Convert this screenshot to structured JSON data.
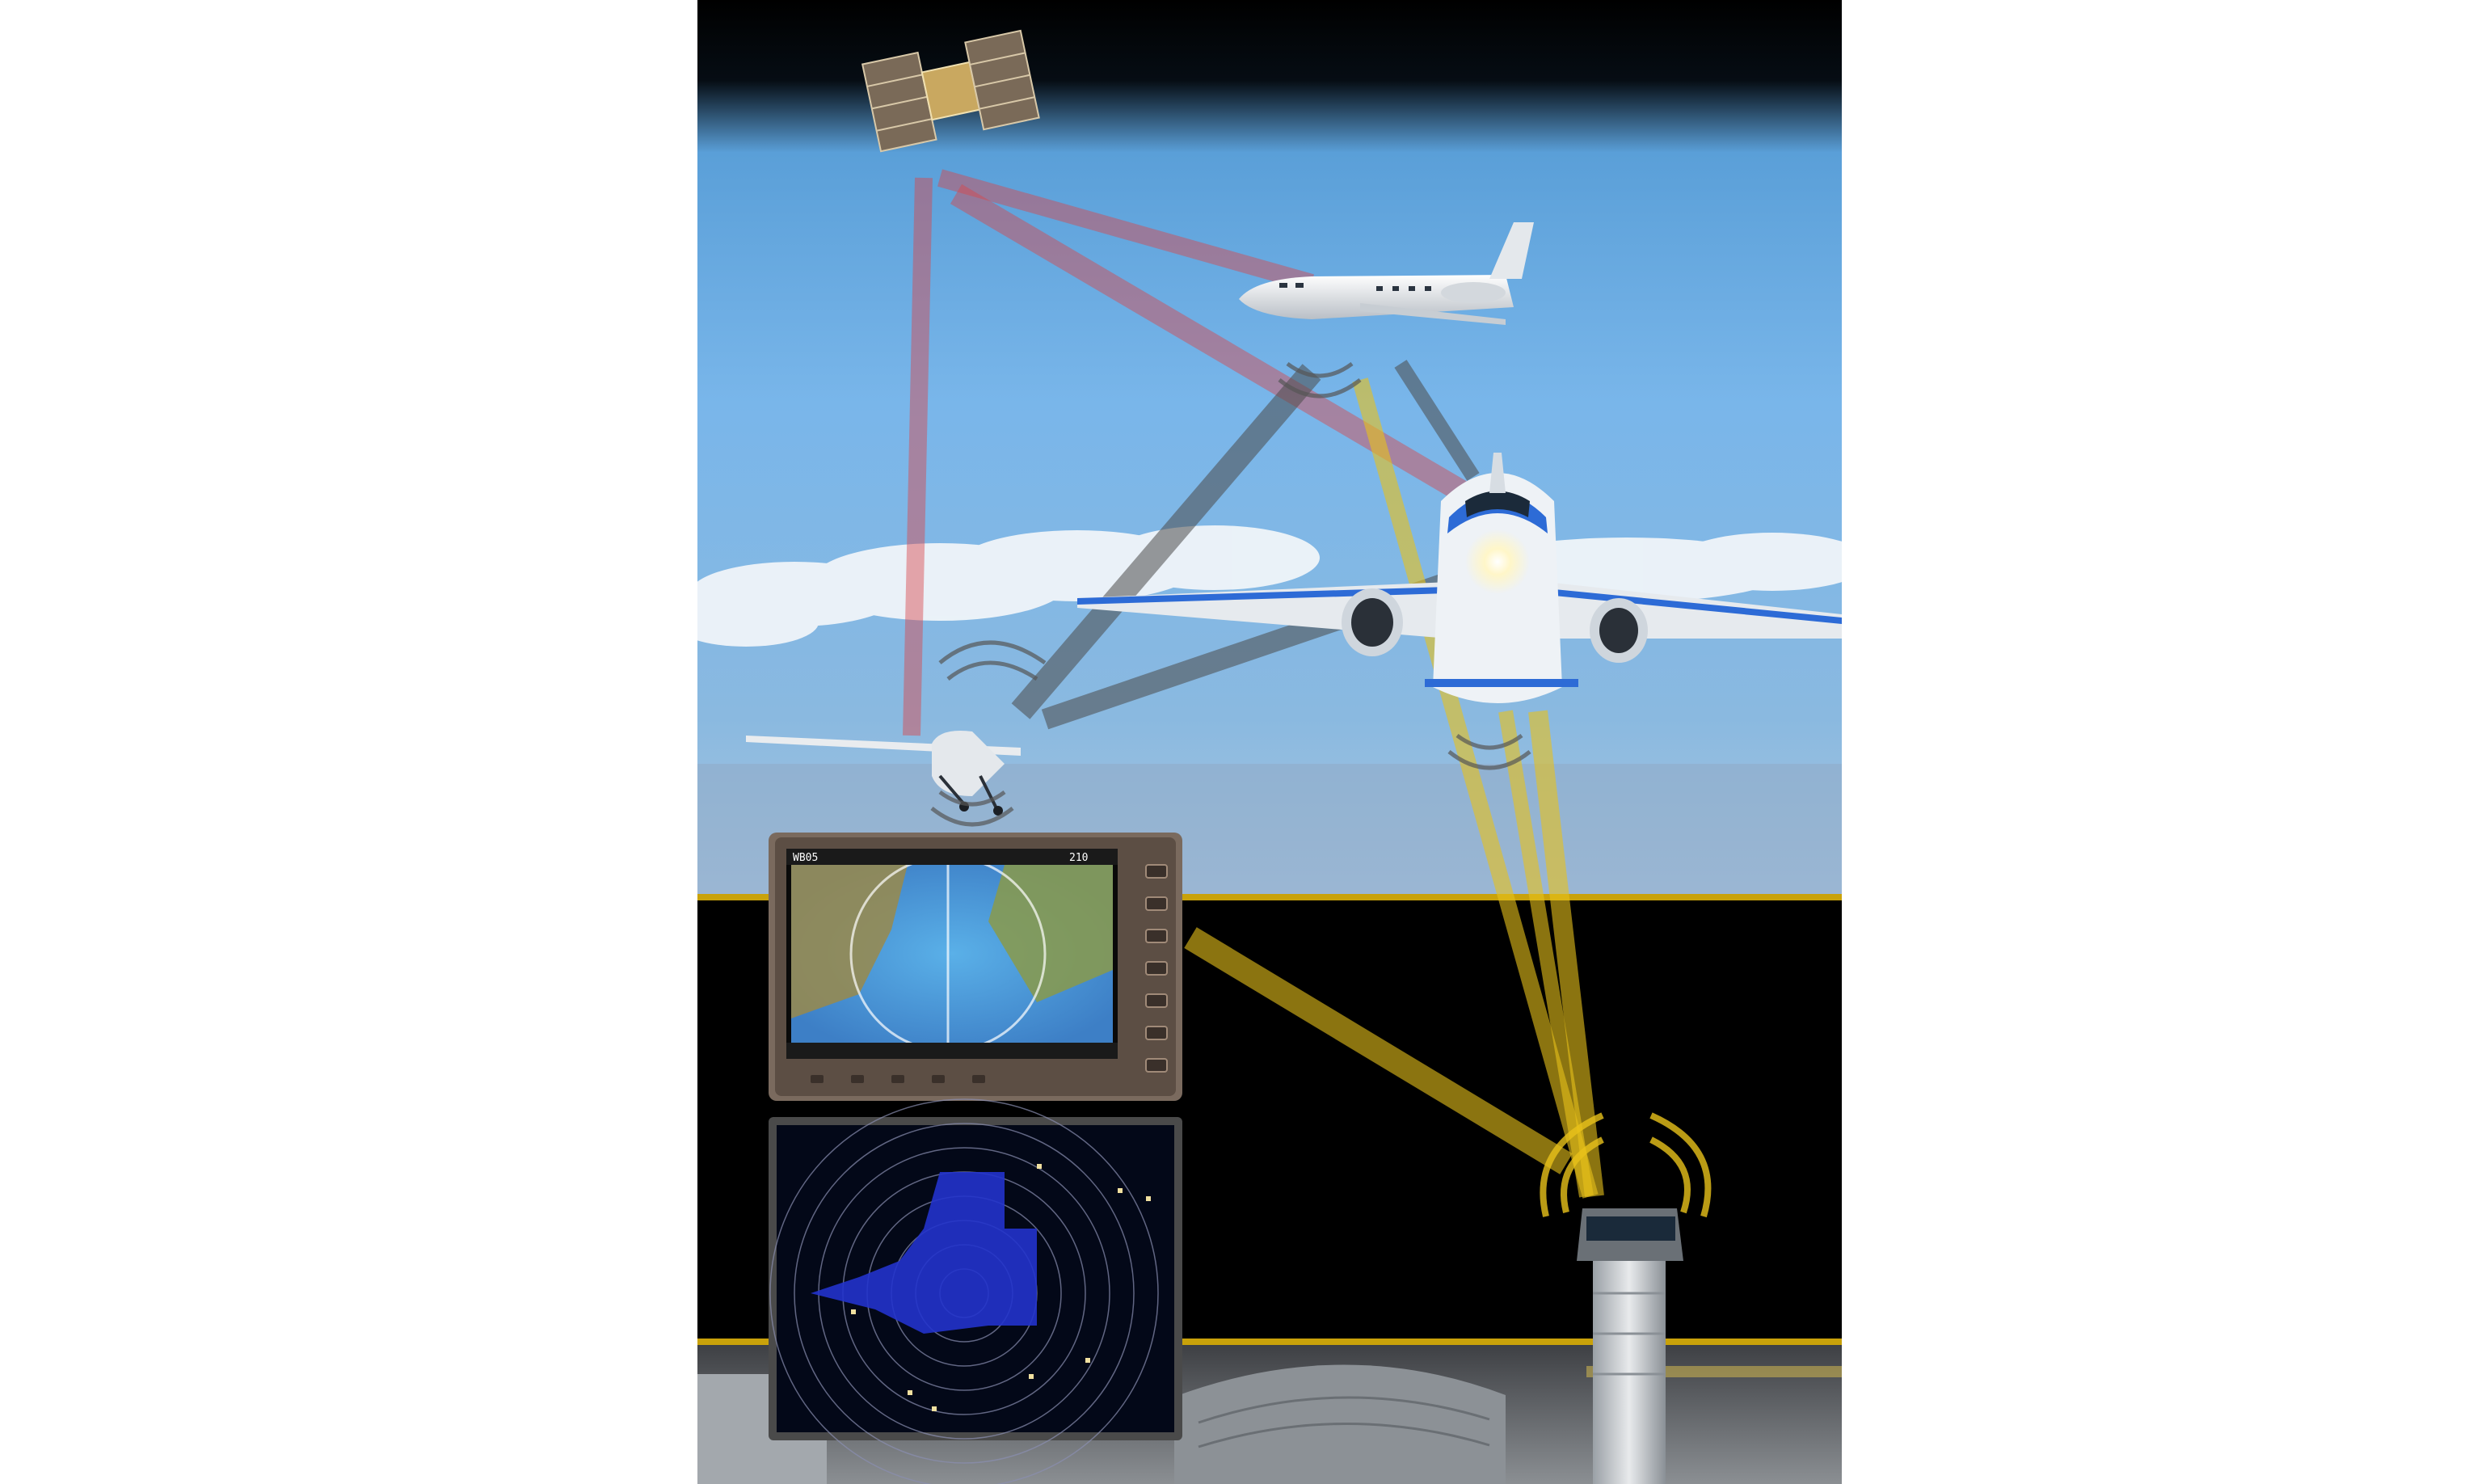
{
  "colors": {
    "background": "#ffffff",
    "sky_top": "#0b1a2a",
    "sky_mid": "#6fb0e6",
    "sky_horizon": "#a9c9e6",
    "night_band": "#000000",
    "accent_gold": "#c9a20a",
    "satellite_link": "#d9444a",
    "aircraft_link": "#555555",
    "ground_link": "#e8c21a",
    "radar_blue": "#0a1a7a",
    "radar_fill": "#2233cc"
  },
  "icons": {
    "satellite": "satellite-icon",
    "business_jet": "business-jet-icon",
    "airliner": "airliner-icon",
    "small_plane": "cessna-icon",
    "tower": "control-tower-icon",
    "signal": "signal-waves-icon"
  },
  "cockpit_display": {
    "heading_readout": "WB05",
    "ground_speed": "210",
    "softkeys": [
      "",
      "",
      "",
      "",
      ""
    ]
  },
  "radar_display": {
    "rings": 8
  }
}
